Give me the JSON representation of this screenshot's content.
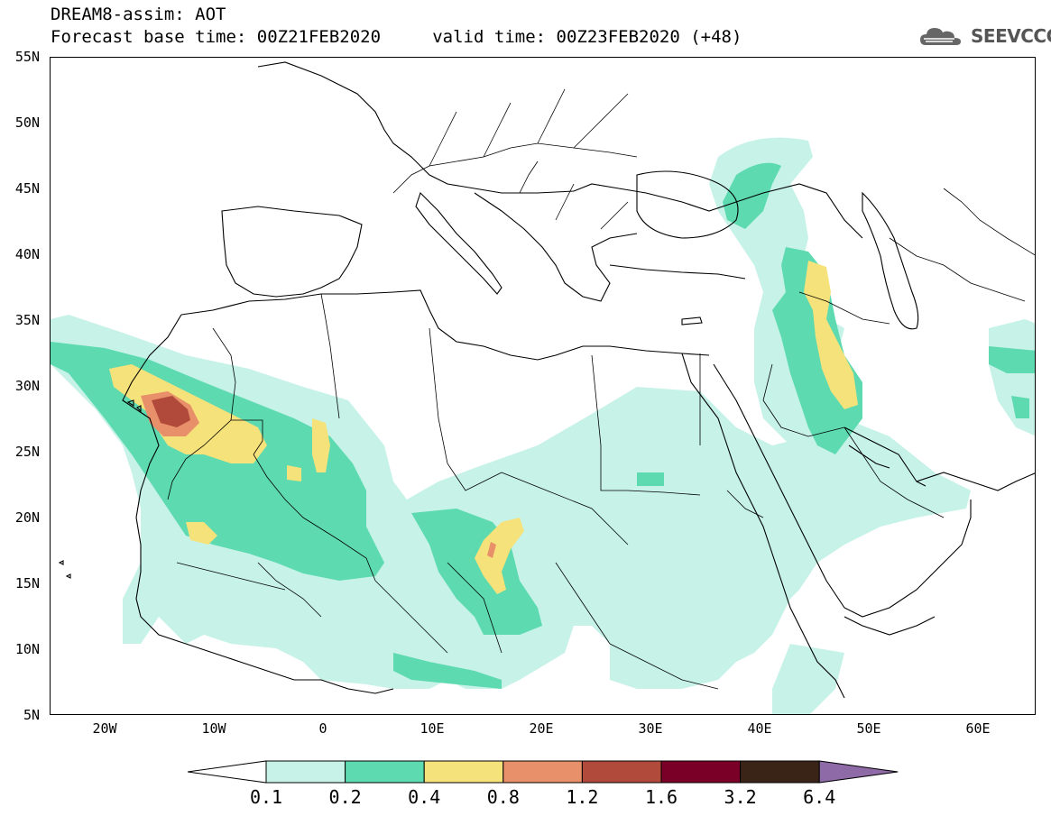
{
  "header": {
    "title_line1": "DREAM8-assim: AOT",
    "title_line2": "Forecast base time: 00Z21FEB2020     valid time: 00Z23FEB2020 (+48)"
  },
  "logo": {
    "text": "SEEVCCC",
    "icon": "cloud-logo-icon"
  },
  "map": {
    "lat_labels": [
      "55N",
      "50N",
      "45N",
      "40N",
      "35N",
      "30N",
      "25N",
      "20N",
      "15N",
      "10N",
      "5N"
    ],
    "lon_labels": [
      "20W",
      "10W",
      "0",
      "10E",
      "20E",
      "30E",
      "40E",
      "50E",
      "60E"
    ]
  },
  "colorbar": {
    "labels": [
      "0.1",
      "0.2",
      "0.4",
      "0.8",
      "1.2",
      "1.6",
      "3.2",
      "6.4"
    ],
    "colors": [
      "#ffffff",
      "#c6f2e8",
      "#5ddab0",
      "#f6e27a",
      "#e8906a",
      "#b24a3c",
      "#7a0027",
      "#3a2418",
      "#8e6aa6"
    ]
  },
  "palette": {
    "level1": "#c6f2e8",
    "level2": "#5ddab0",
    "level3": "#f6e27a",
    "level4": "#e8906a",
    "level5": "#b24a3c"
  }
}
